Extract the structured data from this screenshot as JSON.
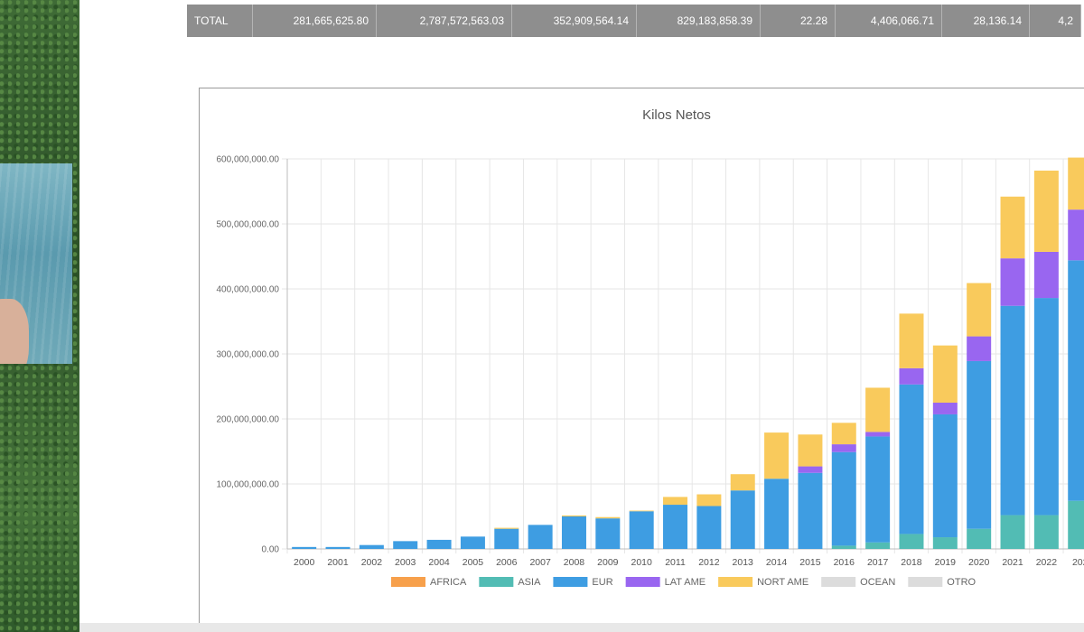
{
  "totals_row": [
    "TOTAL",
    "281,665,625.80",
    "2,787,572,563.03",
    "352,909,564.14",
    "829,183,858.39",
    "22.28",
    "4,406,066.71",
    "28,136.14",
    "4,2"
  ],
  "chart_data": {
    "type": "bar",
    "stacked": true,
    "title": "Kilos Netos",
    "categories": [
      "2000",
      "2001",
      "2002",
      "2003",
      "2004",
      "2005",
      "2006",
      "2007",
      "2008",
      "2009",
      "2010",
      "2011",
      "2012",
      "2013",
      "2014",
      "2015",
      "2016",
      "2017",
      "2018",
      "2019",
      "2020",
      "2021",
      "2022",
      "202"
    ],
    "ylim": [
      0,
      600000000
    ],
    "yticks": [
      "0.00",
      "100,000,000.00",
      "200,000,000.00",
      "300,000,000.00",
      "400,000,000.00",
      "500,000,000.00",
      "600,000,000.00"
    ],
    "grid": true,
    "legend_position": "bottom",
    "series": [
      {
        "name": "AFRICA",
        "color": "#f7a04b",
        "values": [
          0,
          0,
          0,
          0,
          0,
          0,
          0,
          0,
          0,
          0,
          0,
          0,
          0,
          0,
          0,
          0,
          0,
          0,
          0,
          0,
          0,
          0,
          0,
          0
        ]
      },
      {
        "name": "ASIA",
        "color": "#52bcb4",
        "values": [
          0,
          0,
          0,
          0,
          0,
          0,
          0,
          0,
          0,
          0,
          0,
          0,
          0,
          0,
          0,
          0,
          5000000,
          10000000,
          23000000,
          18000000,
          31000000,
          52000000,
          52000000,
          74000000
        ]
      },
      {
        "name": "EUR",
        "color": "#3e9de2",
        "values": [
          3000000,
          3000000,
          6000000,
          12000000,
          14000000,
          19000000,
          31000000,
          37000000,
          50000000,
          47000000,
          58000000,
          68000000,
          66000000,
          90000000,
          108000000,
          117000000,
          144000000,
          163000000,
          230000000,
          189000000,
          258000000,
          322000000,
          334000000,
          370000000
        ]
      },
      {
        "name": "LAT AME",
        "color": "#9966f0",
        "values": [
          0,
          0,
          0,
          0,
          0,
          0,
          0,
          0,
          0,
          0,
          0,
          0,
          0,
          0,
          0,
          10000000,
          12000000,
          7000000,
          25000000,
          18000000,
          38000000,
          73000000,
          71000000,
          78000000
        ]
      },
      {
        "name": "NORT AME",
        "color": "#f9ca5c",
        "values": [
          0,
          0,
          0,
          0,
          0,
          0,
          1500000,
          0,
          1500000,
          2000000,
          1000000,
          12000000,
          18000000,
          25000000,
          71000000,
          49000000,
          33000000,
          68000000,
          84000000,
          88000000,
          82000000,
          95000000,
          125000000,
          80000000
        ]
      },
      {
        "name": "OCEAN",
        "color": "#dcdcdc",
        "values": [
          0,
          0,
          0,
          0,
          0,
          0,
          0,
          0,
          0,
          0,
          0,
          0,
          0,
          0,
          0,
          0,
          0,
          0,
          0,
          0,
          0,
          0,
          0,
          0
        ]
      },
      {
        "name": "OTRO",
        "color": "#dcdcdc",
        "values": [
          0,
          0,
          0,
          0,
          0,
          0,
          0,
          0,
          0,
          0,
          0,
          0,
          0,
          0,
          0,
          0,
          0,
          0,
          0,
          0,
          0,
          0,
          0,
          0
        ]
      }
    ]
  }
}
